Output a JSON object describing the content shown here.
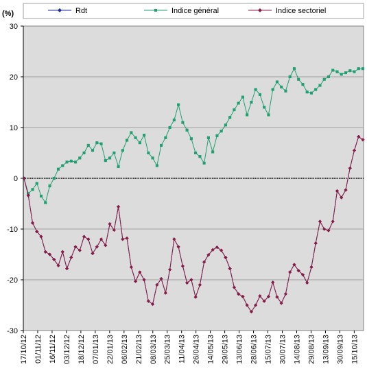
{
  "chart_data": {
    "type": "line",
    "unit_label": "(%)",
    "ylim": [
      -30,
      30
    ],
    "yticks": [
      -30,
      -20,
      -10,
      0,
      10,
      20,
      30
    ],
    "grid": true,
    "legend_position": "top",
    "x_tick_labels": [
      "17/10/12",
      "01/11/12",
      "16/11/12",
      "03/12/12",
      "18/12/12",
      "07/01/13",
      "22/01/13",
      "06/02/13",
      "21/02/13",
      "08/03/13",
      "25/03/13",
      "11/04/13",
      "26/04/13",
      "14/05/13",
      "29/05/13",
      "13/06/13",
      "28/06/13",
      "15/07/13",
      "30/07/13",
      "14/08/13",
      "29/08/13",
      "13/09/13",
      "30/09/13",
      "15/10/13"
    ],
    "colors": {
      "plot_background": "#dcdcdc",
      "gridline": "#a0a0a0",
      "zero_line": "#000000"
    },
    "series": [
      {
        "name": "Rdt",
        "color": "#1f2a9c",
        "marker": "diamond",
        "values": [
          0,
          -3.4,
          -8.8,
          -10.5,
          -11.5,
          -14.5,
          -15,
          -16,
          -17.2,
          -14.5,
          -17.8,
          -15.6,
          -13.5,
          -14.2,
          -11.5,
          -12,
          -14.8,
          -13.5,
          -12,
          -13.2,
          -9,
          -10.2,
          -5.6,
          -12,
          -11.8,
          -17.5,
          -20.3,
          -18.5,
          -20,
          -24.2,
          -24.8,
          -21,
          -19.8,
          -22.6,
          -18,
          -12,
          -13.5,
          -17.3,
          -20.6,
          -20,
          -23.4,
          -21,
          -16.5,
          -15.1,
          -14.1,
          -13.6,
          -14.2,
          -15.6,
          -17.8,
          -21.5,
          -22.8,
          -23.3,
          -25,
          -26.3,
          -25,
          -23.2,
          -24.2,
          -23.3,
          -20.5,
          -23.4,
          -24.6,
          -22.8,
          -18.5,
          -17,
          -18.2,
          -19,
          -20.6,
          -17.5,
          -12.8,
          -8.5,
          -10,
          -10.3,
          -8.5,
          -2.5,
          -3.8,
          -2.3,
          2,
          5.5,
          8.2,
          7.6
        ]
      },
      {
        "name": "Indice général",
        "color": "#20a070",
        "marker": "square",
        "values": [
          0,
          -3,
          -2.2,
          -1,
          -3.5,
          -4.8,
          -1.5,
          0,
          1.8,
          2.5,
          3.2,
          3.4,
          3.2,
          4,
          5,
          6.5,
          5.5,
          7,
          6.8,
          3.5,
          4,
          5,
          2.3,
          5.5,
          7.5,
          9,
          8,
          7,
          8.5,
          5,
          4,
          2.5,
          6.5,
          8,
          10,
          11.5,
          14.5,
          11,
          9.5,
          7.8,
          5,
          4.3,
          3,
          8,
          5.2,
          8.4,
          9.3,
          10.5,
          12,
          13.5,
          14.8,
          16,
          12.5,
          15,
          17.5,
          16.5,
          14,
          12.5,
          17.5,
          19,
          18,
          17.2,
          20,
          21.6,
          19.5,
          18.5,
          17,
          16.8,
          17.5,
          18.3,
          19.5,
          20,
          21.3,
          21,
          20.5,
          20.8,
          21.2,
          21,
          21.6,
          21.6
        ]
      },
      {
        "name": "Indice sectoriel",
        "color": "#8c1c44",
        "marker": "diamond",
        "values": [
          0,
          -3.4,
          -8.8,
          -10.5,
          -11.5,
          -14.5,
          -15,
          -16,
          -17.2,
          -14.5,
          -17.8,
          -15.6,
          -13.5,
          -14.2,
          -11.5,
          -12,
          -14.8,
          -13.5,
          -12,
          -13.2,
          -9,
          -10.2,
          -5.6,
          -12,
          -11.8,
          -17.5,
          -20.3,
          -18.5,
          -20,
          -24.2,
          -24.8,
          -21,
          -19.8,
          -22.6,
          -18,
          -12,
          -13.5,
          -17.3,
          -20.6,
          -20,
          -23.4,
          -21,
          -16.5,
          -15.1,
          -14.1,
          -13.6,
          -14.2,
          -15.6,
          -17.8,
          -21.5,
          -22.8,
          -23.3,
          -25,
          -26.3,
          -25,
          -23.2,
          -24.2,
          -23.3,
          -20.5,
          -23.4,
          -24.6,
          -22.8,
          -18.5,
          -17,
          -18.2,
          -19,
          -20.6,
          -17.5,
          -12.8,
          -8.5,
          -10,
          -10.3,
          -8.5,
          -2.5,
          -3.8,
          -2.3,
          2,
          5.5,
          8.2,
          7.6
        ]
      }
    ]
  }
}
